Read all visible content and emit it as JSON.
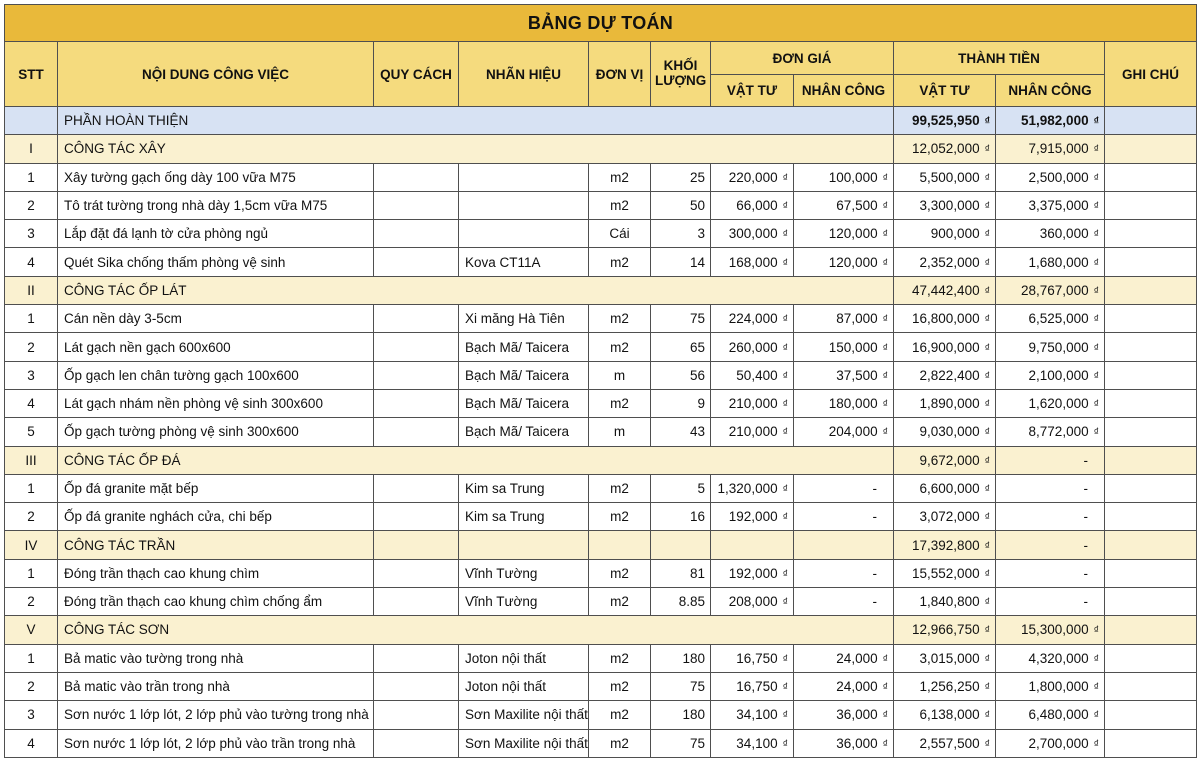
{
  "title": "BẢNG DỰ TOÁN",
  "currency": "₫",
  "colors": {
    "title_bg": "#E9B93A",
    "header_bg": "#F5DB7E",
    "part_row_bg": "#D7E2F3",
    "section_row_bg": "#FAF1D0",
    "item_row_bg": "#FFFFFF",
    "grid_border": "#4F4F4F"
  },
  "header": {
    "stt": "STT",
    "work": "NỘI DUNG CÔNG VIỆC",
    "spec": "QUY CÁCH",
    "brand": "NHÃN HIỆU",
    "unit": "ĐƠN VỊ",
    "quantity": "KHỐI LƯỢNG",
    "unit_price": "ĐƠN GIÁ",
    "total": "THÀNH TIỀN",
    "materials": "VẬT TƯ",
    "labor": "NHÂN CÔNG",
    "notes": "GHI CHÚ"
  },
  "rows": [
    {
      "type": "part",
      "stt": "",
      "name": "PHẦN HOÀN THIỆN",
      "total_mat": "99,525,950",
      "total_lab": "51,982,000",
      "note": ""
    },
    {
      "type": "section",
      "stt": "I",
      "name": "CÔNG TÁC XÂY",
      "total_mat": "12,052,000",
      "total_lab": "7,915,000",
      "note": ""
    },
    {
      "type": "item",
      "stt": "1",
      "name": "Xây tường gạch ống dày 100 vữa M75",
      "spec": "",
      "brand": "",
      "unit": "m2",
      "qty": "25",
      "price_mat": "220,000",
      "price_lab": "100,000",
      "total_mat": "5,500,000",
      "total_lab": "2,500,000",
      "note": ""
    },
    {
      "type": "item",
      "stt": "2",
      "name": "Tô trát tường trong nhà dày 1,5cm vữa M75",
      "spec": "",
      "brand": "",
      "unit": "m2",
      "qty": "50",
      "price_mat": "66,000",
      "price_lab": "67,500",
      "total_mat": "3,300,000",
      "total_lab": "3,375,000",
      "note": ""
    },
    {
      "type": "item",
      "stt": "3",
      "name": "Lắp đặt đá lạnh tờ cửa phòng ngủ",
      "spec": "",
      "brand": "",
      "unit": "Cái",
      "qty": "3",
      "price_mat": "300,000",
      "price_lab": "120,000",
      "total_mat": "900,000",
      "total_lab": "360,000",
      "note": ""
    },
    {
      "type": "item",
      "stt": "4",
      "name": "Quét Sika chống thấm phòng vệ sinh",
      "spec": "",
      "brand": "Kova CT11A",
      "unit": "m2",
      "qty": "14",
      "price_mat": "168,000",
      "price_lab": "120,000",
      "total_mat": "2,352,000",
      "total_lab": "1,680,000",
      "note": ""
    },
    {
      "type": "section",
      "stt": "II",
      "name": "CÔNG TÁC ỐP LÁT",
      "total_mat": "47,442,400",
      "total_lab": "28,767,000",
      "note": ""
    },
    {
      "type": "item",
      "stt": "1",
      "name": "Cán nền dày 3-5cm",
      "spec": "",
      "brand": "Xi măng Hà Tiên",
      "unit": "m2",
      "qty": "75",
      "price_mat": "224,000",
      "price_lab": "87,000",
      "total_mat": "16,800,000",
      "total_lab": "6,525,000",
      "note": ""
    },
    {
      "type": "item",
      "stt": "2",
      "name": "Lát gạch nền gạch 600x600",
      "spec": "",
      "brand": "Bạch Mã/ Taicera",
      "unit": "m2",
      "qty": "65",
      "price_mat": "260,000",
      "price_lab": "150,000",
      "total_mat": "16,900,000",
      "total_lab": "9,750,000",
      "note": ""
    },
    {
      "type": "item",
      "stt": "3",
      "name": "Ốp gạch len chân tường gạch 100x600",
      "spec": "",
      "brand": "Bạch Mã/ Taicera",
      "unit": "m",
      "qty": "56",
      "price_mat": "50,400",
      "price_lab": "37,500",
      "total_mat": "2,822,400",
      "total_lab": "2,100,000",
      "note": ""
    },
    {
      "type": "item",
      "stt": "4",
      "name": "Lát gạch nhám nền phòng vệ sinh 300x600",
      "spec": "",
      "brand": "Bạch Mã/ Taicera",
      "unit": "m2",
      "qty": "9",
      "price_mat": "210,000",
      "price_lab": "180,000",
      "total_mat": "1,890,000",
      "total_lab": "1,620,000",
      "note": ""
    },
    {
      "type": "item",
      "stt": "5",
      "name": "Ốp gạch tường phòng vệ sinh 300x600",
      "spec": "",
      "brand": "Bạch Mã/ Taicera",
      "unit": "m",
      "qty": "43",
      "price_mat": "210,000",
      "price_lab": "204,000",
      "total_mat": "9,030,000",
      "total_lab": "8,772,000",
      "note": ""
    },
    {
      "type": "section",
      "stt": "III",
      "name": "CÔNG TÁC ỐP ĐÁ",
      "total_mat": "9,672,000",
      "total_lab": "-",
      "note": ""
    },
    {
      "type": "item",
      "stt": "1",
      "name": "Ốp đá granite mặt bếp",
      "spec": "",
      "brand": "Kim sa Trung",
      "unit": "m2",
      "qty": "5",
      "price_mat": "1,320,000",
      "price_lab": "-",
      "total_mat": "6,600,000",
      "total_lab": "-",
      "note": ""
    },
    {
      "type": "item",
      "stt": "2",
      "name": "Ốp đá granite nghách cửa, chi bếp",
      "spec": "",
      "brand": "Kim sa Trung",
      "unit": "m2",
      "qty": "16",
      "price_mat": "192,000",
      "price_lab": "-",
      "total_mat": "3,072,000",
      "total_lab": "-",
      "note": ""
    },
    {
      "type": "section",
      "stt": "IV",
      "name": "CÔNG TÁC TRẦN",
      "divided": true,
      "spec": "",
      "brand": "",
      "unit": "",
      "qty": "",
      "price_mat": "",
      "price_lab": "",
      "total_mat": "17,392,800",
      "total_lab": "-",
      "note": ""
    },
    {
      "type": "item",
      "stt": "1",
      "name": "Đóng trần thạch cao khung chìm",
      "spec": "",
      "brand": "Vĩnh Tường",
      "unit": "m2",
      "qty": "81",
      "price_mat": "192,000",
      "price_lab": "-",
      "total_mat": "15,552,000",
      "total_lab": "-",
      "note": ""
    },
    {
      "type": "item",
      "stt": "2",
      "name": "Đóng trần thạch cao khung chìm chống ẩm",
      "spec": "",
      "brand": "Vĩnh Tường",
      "unit": "m2",
      "qty": "8.85",
      "price_mat": "208,000",
      "price_lab": "-",
      "total_mat": "1,840,800",
      "total_lab": "-",
      "note": ""
    },
    {
      "type": "section",
      "stt": "V",
      "name": "CÔNG TÁC SƠN",
      "total_mat": "12,966,750",
      "total_lab": "15,300,000",
      "note": ""
    },
    {
      "type": "item",
      "stt": "1",
      "name": "Bả matic vào tường trong nhà",
      "spec": "",
      "brand": "Joton nội thất",
      "unit": "m2",
      "qty": "180",
      "price_mat": "16,750",
      "price_lab": "24,000",
      "total_mat": "3,015,000",
      "total_lab": "4,320,000",
      "note": ""
    },
    {
      "type": "item",
      "stt": "2",
      "name": "Bả matic vào trần trong nhà",
      "spec": "",
      "brand": "Joton nội thất",
      "unit": "m2",
      "qty": "75",
      "price_mat": "16,750",
      "price_lab": "24,000",
      "total_mat": "1,256,250",
      "total_lab": "1,800,000",
      "note": ""
    },
    {
      "type": "item",
      "stt": "3",
      "name": "Sơn nước 1 lớp lót, 2 lớp phủ vào tường trong nhà",
      "spec": "",
      "brand": "Sơn Maxilite nội thất",
      "unit": "m2",
      "qty": "180",
      "price_mat": "34,100",
      "price_lab": "36,000",
      "total_mat": "6,138,000",
      "total_lab": "6,480,000",
      "note": ""
    },
    {
      "type": "item",
      "stt": "4",
      "name": "Sơn nước 1 lớp lót, 2 lớp phủ vào trần trong nhà",
      "spec": "",
      "brand": "Sơn Maxilite nội thất",
      "unit": "m2",
      "qty": "75",
      "price_mat": "34,100",
      "price_lab": "36,000",
      "total_mat": "2,557,500",
      "total_lab": "2,700,000",
      "note": ""
    }
  ]
}
